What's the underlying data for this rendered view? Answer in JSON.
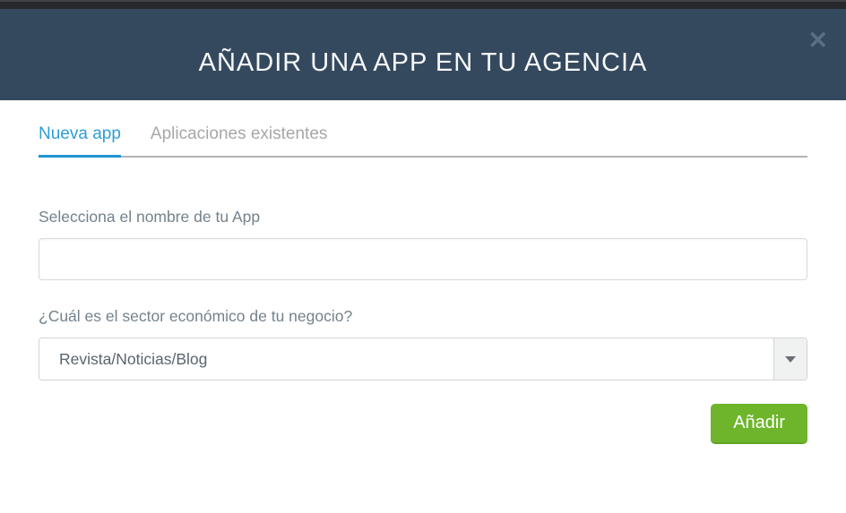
{
  "modal": {
    "title": "AÑADIR UNA APP EN TU AGENCIA",
    "close_icon": "✕"
  },
  "tabs": [
    {
      "label": "Nueva app",
      "active": true
    },
    {
      "label": "Aplicaciones existentes",
      "active": false
    }
  ],
  "form": {
    "app_name": {
      "label": "Selecciona el nombre de tu App",
      "value": "",
      "placeholder": ""
    },
    "sector": {
      "label": "¿Cuál es el sector económico de tu negocio?",
      "selected": "Revista/Noticias/Blog"
    },
    "submit_label": "Añadir"
  },
  "colors": {
    "header_bg": "#35495e",
    "top_strip_bg": "#26282c",
    "active_tab": "#2d9ed6",
    "tab_underline": "#2196d3",
    "inactive_tab": "#a5a7a9",
    "label_text": "#74828c",
    "select_value_text": "#5a646e",
    "submit_bg": "#6eb52c",
    "submit_text": "#ffffff"
  }
}
